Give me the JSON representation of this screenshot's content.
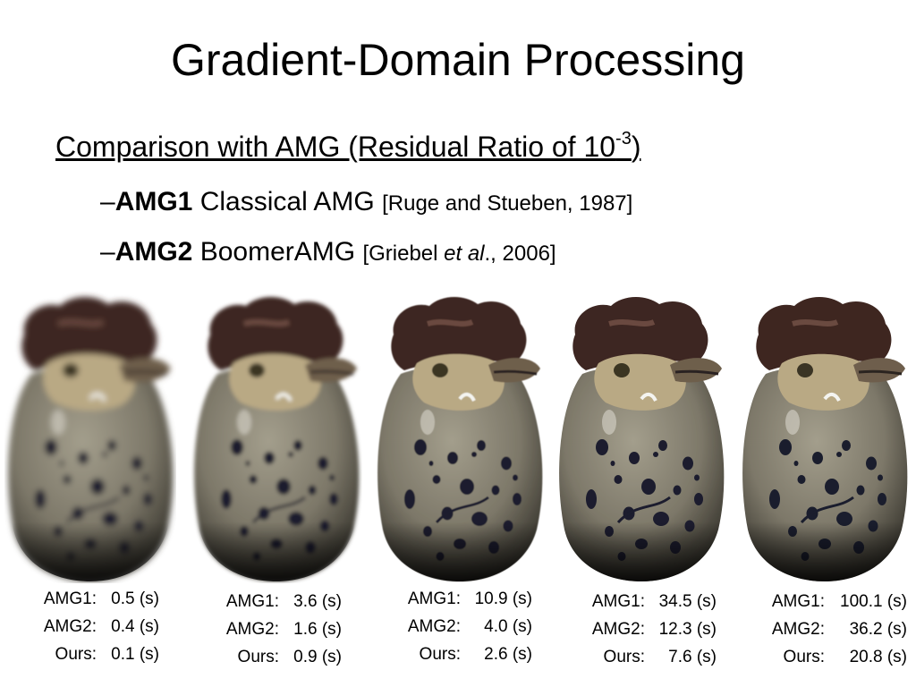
{
  "slide": {
    "title": "Gradient-Domain Processing",
    "subtitle": {
      "text": "Comparison with AMG (Residual Ratio of 10",
      "exponent": "-3",
      "close": ")"
    },
    "bullets": [
      {
        "dash": "–",
        "bold": "AMG1",
        "text": " Classical AMG ",
        "ref": "[Ruge and Stueben, 1987]"
      },
      {
        "dash": "–",
        "bold": "AMG2",
        "text": " BoomerAMG ",
        "ref_pre": "[Griebel ",
        "ref_italic": "et al",
        "ref_post": "., 2006]"
      }
    ]
  },
  "figures": [
    {
      "icon": "rooster-pitcher-image",
      "blur": 3.5
    },
    {
      "icon": "rooster-pitcher-image",
      "blur": 2.2
    },
    {
      "icon": "rooster-pitcher-image",
      "blur": 0.6
    },
    {
      "icon": "rooster-pitcher-image",
      "blur": 0.3
    },
    {
      "icon": "rooster-pitcher-image",
      "blur": 0
    }
  ],
  "timings": [
    {
      "rows": [
        {
          "label": "AMG1:",
          "value": "0.5 (s)"
        },
        {
          "label": "AMG2:",
          "value": "0.4 (s)"
        },
        {
          "label": "Ours:",
          "value": "0.1 (s)"
        }
      ]
    },
    {
      "rows": [
        {
          "label": "AMG1:",
          "value": "3.6 (s)"
        },
        {
          "label": "AMG2:",
          "value": "1.6 (s)"
        },
        {
          "label": "Ours:",
          "value": "0.9 (s)"
        }
      ]
    },
    {
      "rows": [
        {
          "label": "AMG1:",
          "value": "10.9 (s)"
        },
        {
          "label": "AMG2:",
          "value": "4.0 (s)"
        },
        {
          "label": "Ours:",
          "value": "2.6 (s)"
        }
      ]
    },
    {
      "rows": [
        {
          "label": "AMG1:",
          "value": "34.5 (s)"
        },
        {
          "label": "AMG2:",
          "value": "12.3 (s)"
        },
        {
          "label": "Ours:",
          "value": "7.6 (s)"
        }
      ]
    },
    {
      "rows": [
        {
          "label": "AMG1:",
          "value": "100.1 (s)"
        },
        {
          "label": "AMG2:",
          "value": "36.2 (s)"
        },
        {
          "label": "Ours:",
          "value": "20.8 (s)"
        }
      ]
    }
  ],
  "colors": {
    "comb": "#3e2620",
    "face": "#b9a984",
    "body": "#7d7869",
    "spot": "#1a1d2d",
    "shadow": "#111111"
  }
}
